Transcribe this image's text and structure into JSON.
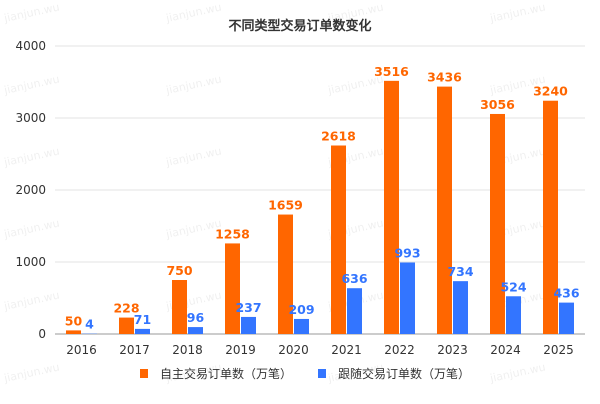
{
  "watermark": "jianjun.wu",
  "chart_data": {
    "type": "bar",
    "title": "不同类型交易订单数变化",
    "categories": [
      "2016",
      "2017",
      "2018",
      "2019",
      "2020",
      "2021",
      "2022",
      "2023",
      "2024",
      "2025"
    ],
    "series": [
      {
        "name": "自主交易订单数（万笔）",
        "color": "#ff6600",
        "values": [
          50,
          228,
          750,
          1258,
          1659,
          2618,
          3516,
          3436,
          3056,
          3240
        ]
      },
      {
        "name": "跟随交易订单数（万笔）",
        "color": "#3375ff",
        "values": [
          4,
          71,
          96,
          237,
          209,
          636,
          993,
          734,
          524,
          436
        ]
      }
    ],
    "ylim": [
      0,
      4000
    ],
    "yticks": [
      0,
      1000,
      2000,
      3000,
      4000
    ],
    "xlabel": "",
    "ylabel": "",
    "grid": true,
    "legend": "bottom",
    "data_labels": true
  }
}
